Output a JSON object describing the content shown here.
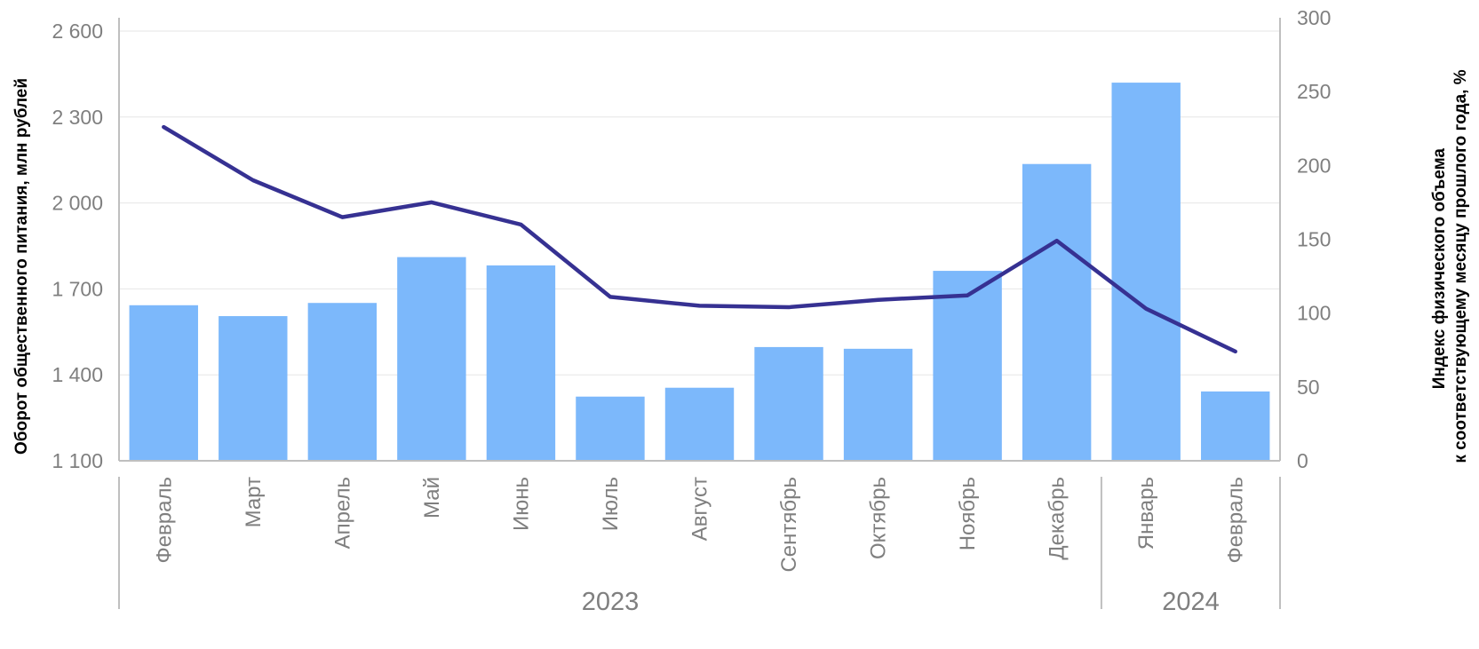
{
  "chart_data": {
    "type": "bar",
    "categories": [
      "Февраль",
      "Март",
      "Апрель",
      "Май",
      "Июнь",
      "Июль",
      "Август",
      "Сентябрь",
      "Октябрь",
      "Ноябрь",
      "Декабрь",
      "Январь",
      "Февраль"
    ],
    "year_groups": [
      {
        "label": "2023",
        "count": 11
      },
      {
        "label": "2024",
        "count": 2
      }
    ],
    "series": [
      {
        "type": "bar",
        "axis": "left",
        "color": "#7cb8fb",
        "values": [
          1643,
          1605,
          1651,
          1811,
          1782,
          1324,
          1355,
          1497,
          1491,
          1763,
          2136,
          2420,
          1342
        ]
      },
      {
        "type": "line",
        "axis": "right",
        "color": "#363192",
        "values": [
          226,
          190,
          165,
          175,
          160,
          111,
          105,
          104,
          109,
          112,
          149,
          103,
          74
        ]
      }
    ],
    "left_axis": {
      "title": "Оборот общественного питания, млн рублей",
      "ylim": [
        1100,
        2650
      ],
      "ticks": [
        1100,
        1400,
        1700,
        2000,
        2300,
        2600
      ],
      "tick_labels": [
        "1 100",
        "1 400",
        "1 700",
        "2 000",
        "2 300",
        "2 600"
      ]
    },
    "right_axis": {
      "title_lines": [
        "Индекс физического объема",
        "к соответствующему месяцу прошлого года, %"
      ],
      "ylim": [
        0,
        300
      ],
      "ticks": [
        0,
        50,
        100,
        150,
        200,
        250,
        300
      ],
      "tick_labels": [
        "0",
        "50",
        "100",
        "150",
        "200",
        "250",
        "300"
      ]
    },
    "grid": true
  }
}
